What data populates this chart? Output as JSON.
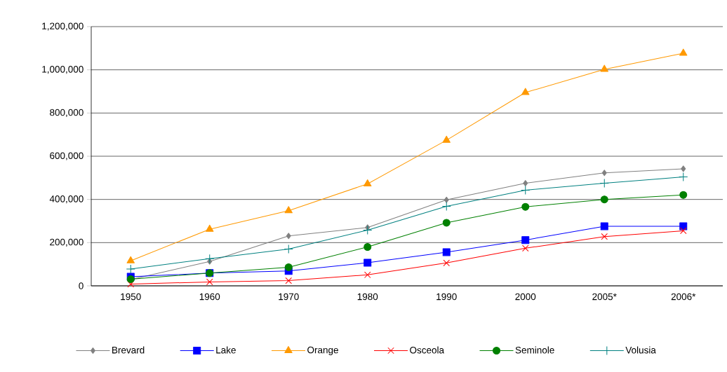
{
  "chart_data": {
    "type": "line",
    "categories": [
      "1950",
      "1960",
      "1970",
      "1980",
      "1990",
      "2000",
      "2005*",
      "2006*"
    ],
    "series": [
      {
        "name": "Brevard",
        "color": "#808080",
        "marker": "diamond",
        "values": [
          29000,
          113000,
          231000,
          270000,
          398000,
          475000,
          523000,
          542000
        ]
      },
      {
        "name": "Lake",
        "color": "#0000ff",
        "marker": "square",
        "values": [
          42000,
          59000,
          69000,
          107000,
          156000,
          212000,
          276000,
          276000
        ]
      },
      {
        "name": "Orange",
        "color": "#ff9900",
        "marker": "triangle",
        "values": [
          116000,
          262000,
          348000,
          472000,
          674000,
          895000,
          1002000,
          1077000
        ]
      },
      {
        "name": "Osceola",
        "color": "#ff0000",
        "marker": "cross",
        "values": [
          8000,
          18000,
          24000,
          51000,
          106000,
          174000,
          228000,
          255000
        ]
      },
      {
        "name": "Seminole",
        "color": "#008000",
        "marker": "circle",
        "values": [
          31000,
          59000,
          86000,
          180000,
          292000,
          366000,
          400000,
          421000
        ]
      },
      {
        "name": "Volusia",
        "color": "#008080",
        "marker": "plus",
        "values": [
          78000,
          126000,
          170000,
          258000,
          368000,
          443000,
          475000,
          504000
        ]
      }
    ],
    "ylim": [
      0,
      1200000
    ],
    "yticks": [
      0,
      {
        "value": 200000,
        "label": "200,000"
      },
      {
        "value": 400000,
        "label": "400,000"
      },
      {
        "value": 600000,
        "label": "600,000"
      },
      {
        "value": 800000,
        "label": "800,000"
      },
      {
        "value": 1000000,
        "label": "1,000,000"
      },
      {
        "value": 1200000,
        "label": "1,200,000"
      }
    ],
    "grid": "y",
    "legend": "bottom"
  }
}
